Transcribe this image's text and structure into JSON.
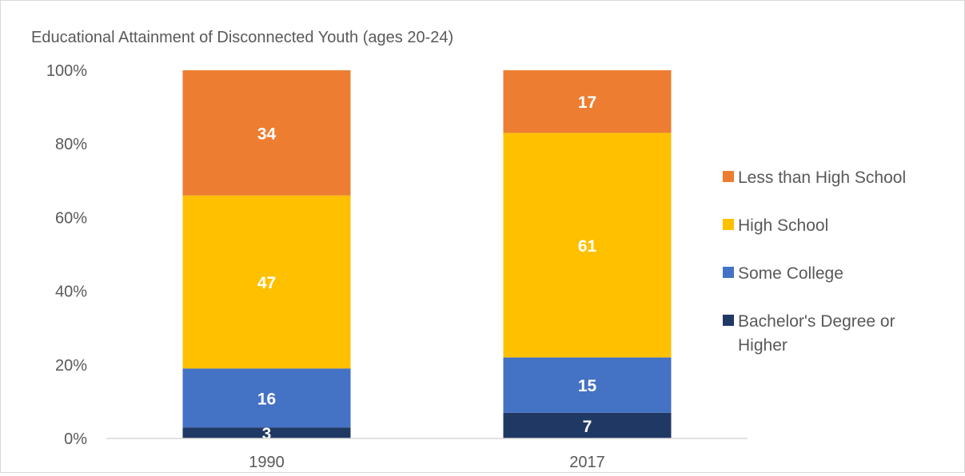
{
  "chart_data": {
    "type": "bar",
    "stacked": true,
    "title": "Educational Attainment of Disconnected Youth (ages 20-24)",
    "categories": [
      "1990",
      "2017"
    ],
    "series": [
      {
        "name": "Bachelor's Degree or Higher",
        "values": [
          3,
          7
        ],
        "color": "#203864"
      },
      {
        "name": "Some College",
        "values": [
          16,
          15
        ],
        "color": "#4472c4"
      },
      {
        "name": "High School",
        "values": [
          47,
          61
        ],
        "color": "#ffc000"
      },
      {
        "name": "Less than High School",
        "values": [
          34,
          17
        ],
        "color": "#ed7d31"
      }
    ],
    "legend_order": [
      "Less than High School",
      "High School",
      "Some College",
      "Bachelor's Degree or Higher"
    ],
    "y_ticks": [
      "0%",
      "20%",
      "40%",
      "60%",
      "80%",
      "100%"
    ],
    "ylim": [
      0,
      100
    ],
    "legend_position": "right",
    "grid": false
  }
}
